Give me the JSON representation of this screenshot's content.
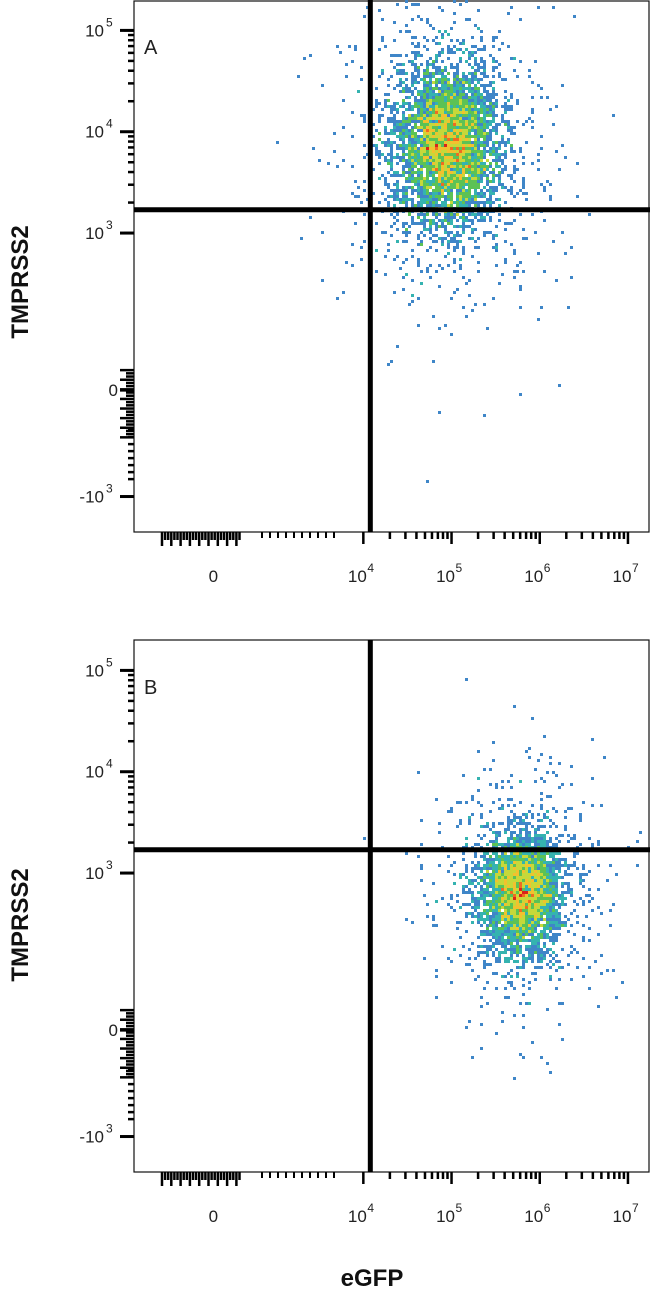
{
  "chart_data": [
    {
      "type": "scatter",
      "panel_label": "A",
      "xlabel": "eGFP",
      "ylabel": "TMPRSS2",
      "x_scale": "biexponential",
      "y_scale": "biexponential",
      "x_tick_labels": [
        {
          "value": 0,
          "label": "0",
          "exp": ""
        },
        {
          "value": 10000,
          "label": "10",
          "exp": "4"
        },
        {
          "value": 100000,
          "label": "10",
          "exp": "5"
        },
        {
          "value": 1000000,
          "label": "10",
          "exp": "6"
        },
        {
          "value": 10000000,
          "label": "10",
          "exp": "7"
        }
      ],
      "y_tick_labels": [
        {
          "value": -1000,
          "label": "-10",
          "exp": "3"
        },
        {
          "value": 0,
          "label": "0",
          "exp": ""
        },
        {
          "value": 1000,
          "label": "10",
          "exp": "3"
        },
        {
          "value": 10000,
          "label": "10",
          "exp": "4"
        },
        {
          "value": 100000,
          "label": "10",
          "exp": "5"
        }
      ],
      "gate": {
        "x": 12000,
        "y": 1700
      },
      "population": {
        "center_x": 90000,
        "center_y": 7500,
        "spread_x_decades": 0.28,
        "spread_y_decades": 0.3,
        "events": 5200
      }
    },
    {
      "type": "scatter",
      "panel_label": "B",
      "xlabel": "eGFP",
      "ylabel": "TMPRSS2",
      "x_scale": "biexponential",
      "y_scale": "biexponential",
      "x_tick_labels": [
        {
          "value": 0,
          "label": "0",
          "exp": ""
        },
        {
          "value": 10000,
          "label": "10",
          "exp": "4"
        },
        {
          "value": 100000,
          "label": "10",
          "exp": "5"
        },
        {
          "value": 1000000,
          "label": "10",
          "exp": "6"
        },
        {
          "value": 10000000,
          "label": "10",
          "exp": "7"
        }
      ],
      "y_tick_labels": [
        {
          "value": -1000,
          "label": "-10",
          "exp": "3"
        },
        {
          "value": 0,
          "label": "0",
          "exp": ""
        },
        {
          "value": 1000,
          "label": "10",
          "exp": "3"
        },
        {
          "value": 10000,
          "label": "10",
          "exp": "4"
        },
        {
          "value": 100000,
          "label": "10",
          "exp": "5"
        }
      ],
      "gate": {
        "x": 12000,
        "y": 1700
      },
      "population": {
        "center_x": 600000,
        "center_y": 650,
        "spread_x_decades": 0.22,
        "spread_y_decades": 0.28,
        "events": 4200
      }
    }
  ],
  "density_colors": [
    "#2b4f9e",
    "#3f86c8",
    "#35b3b0",
    "#5cc255",
    "#c6d83a",
    "#f2c12e",
    "#ef6b22",
    "#d9241b"
  ],
  "axis_color": "#000000"
}
